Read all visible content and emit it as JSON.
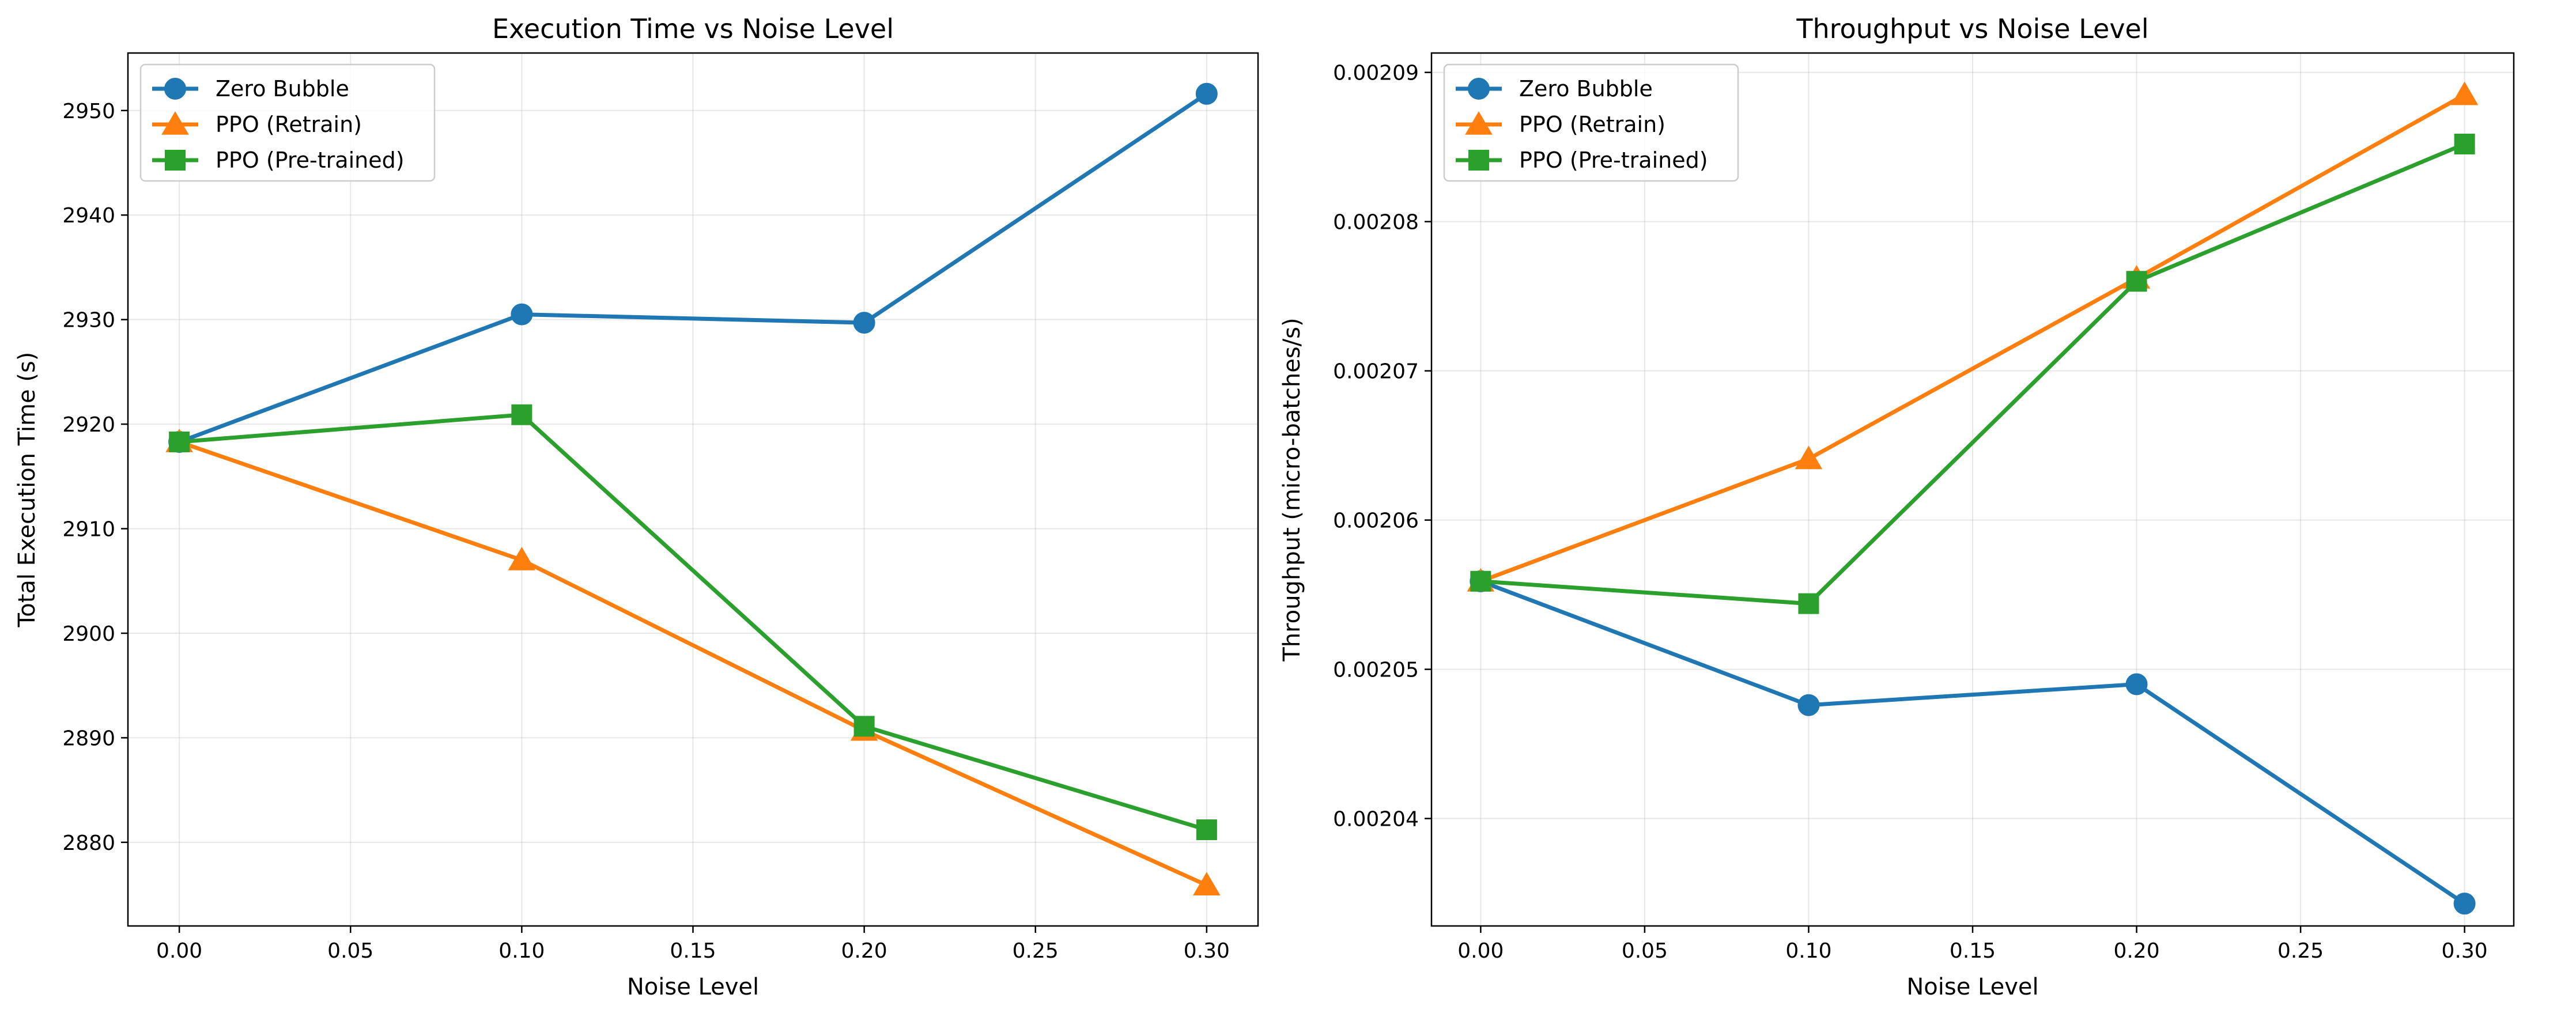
{
  "chart_data": [
    {
      "type": "line",
      "title": "Execution Time vs Noise Level",
      "xlabel": "Noise Level",
      "ylabel": "Total Execution Time (s)",
      "x": [
        0.0,
        0.1,
        0.2,
        0.3
      ],
      "xlim": [
        -0.015,
        0.315
      ],
      "ylim": [
        2872,
        2955.5
      ],
      "xticks": [
        0.0,
        0.05,
        0.1,
        0.15,
        0.2,
        0.25,
        0.3
      ],
      "xtick_labels": [
        "0.00",
        "0.05",
        "0.10",
        "0.15",
        "0.20",
        "0.25",
        "0.30"
      ],
      "yticks": [
        2880,
        2890,
        2900,
        2910,
        2920,
        2930,
        2940,
        2950
      ],
      "ytick_labels": [
        "2880",
        "2890",
        "2900",
        "2910",
        "2920",
        "2930",
        "2940",
        "2950"
      ],
      "grid": true,
      "legend_position": "top-left",
      "series": [
        {
          "name": "Zero Bubble",
          "color": "#1f77b4",
          "marker": "circle",
          "values": [
            2918.3,
            2930.5,
            2929.7,
            2951.6
          ]
        },
        {
          "name": "PPO (Retrain)",
          "color": "#ff7f0e",
          "marker": "triangle",
          "values": [
            2918.3,
            2907.0,
            2890.7,
            2875.9
          ]
        },
        {
          "name": "PPO (Pre-trained)",
          "color": "#2ca02c",
          "marker": "square",
          "values": [
            2918.3,
            2920.9,
            2891.1,
            2881.2
          ]
        }
      ]
    },
    {
      "type": "line",
      "title": "Throughput vs Noise Level",
      "xlabel": "Noise Level",
      "ylabel": "Throughput (micro-batches/s)",
      "x": [
        0.0,
        0.1,
        0.2,
        0.3
      ],
      "xlim": [
        -0.015,
        0.315
      ],
      "ylim": [
        0.0020328,
        0.0020913
      ],
      "xticks": [
        0.0,
        0.05,
        0.1,
        0.15,
        0.2,
        0.25,
        0.3
      ],
      "xtick_labels": [
        "0.00",
        "0.05",
        "0.10",
        "0.15",
        "0.20",
        "0.25",
        "0.30"
      ],
      "yticks": [
        0.00204,
        0.00205,
        0.00206,
        0.00207,
        0.00208,
        0.00209
      ],
      "ytick_labels": [
        "0.00204",
        "0.00205",
        "0.00206",
        "0.00207",
        "0.00208",
        "0.00209"
      ],
      "grid": true,
      "legend_position": "top-left",
      "series": [
        {
          "name": "Zero Bubble",
          "color": "#1f77b4",
          "marker": "circle",
          "values": [
            0.0020559,
            0.0020476,
            0.002049,
            0.0020343
          ]
        },
        {
          "name": "PPO (Retrain)",
          "color": "#ff7f0e",
          "marker": "triangle",
          "values": [
            0.0020559,
            0.0020641,
            0.0020762,
            0.0020885
          ]
        },
        {
          "name": "PPO (Pre-trained)",
          "color": "#2ca02c",
          "marker": "square",
          "values": [
            0.0020559,
            0.0020544,
            0.002076,
            0.0020852
          ]
        }
      ]
    }
  ]
}
